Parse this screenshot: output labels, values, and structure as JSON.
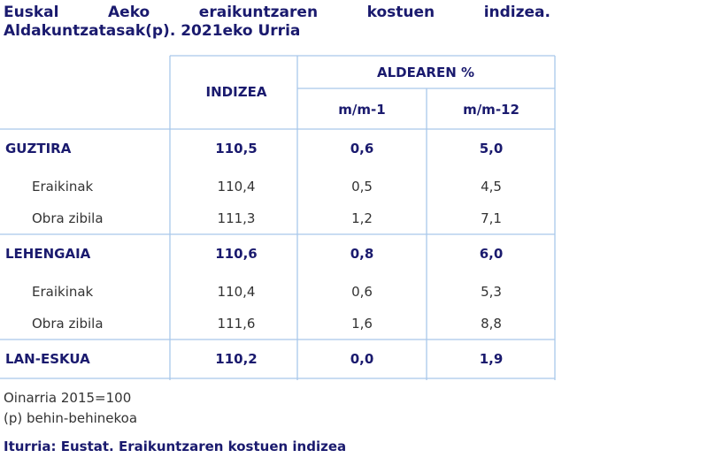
{
  "title": [
    "Euskal Aeko eraikuntzaren kostuen indizea.",
    "Aldakuntzatasak(p). 2021eko Urria"
  ],
  "table": {
    "headers": {
      "index": "INDIZEA",
      "change": "ALDEAREN %",
      "sub": [
        "m/m-1",
        "m/m-12"
      ]
    },
    "groups": [
      {
        "label": "GUZTIRA",
        "cells": [
          "110,5",
          "0,6",
          "5,0"
        ],
        "items": [
          {
            "label": "Eraikinak",
            "cells": [
              "110,4",
              "0,5",
              "4,5"
            ]
          },
          {
            "label": "Obra zibila",
            "cells": [
              "111,3",
              "1,2",
              "7,1"
            ]
          }
        ]
      },
      {
        "label": "LEHENGAIA",
        "cells": [
          "110,6",
          "0,8",
          "6,0"
        ],
        "items": [
          {
            "label": "Eraikinak",
            "cells": [
              "110,4",
              "0,6",
              "5,3"
            ]
          },
          {
            "label": "Obra zibila",
            "cells": [
              "111,6",
              "1,6",
              "8,8"
            ]
          }
        ]
      },
      {
        "label": "LAN-ESKUA",
        "cells": [
          "110,2",
          "0,0",
          "1,9"
        ],
        "items": []
      }
    ]
  },
  "notes": [
    "Oinarria 2015=100",
    "(p) behin-behinekoa"
  ],
  "source": "Iturria: Eustat. Eraikuntzaren kostuen indizea"
}
